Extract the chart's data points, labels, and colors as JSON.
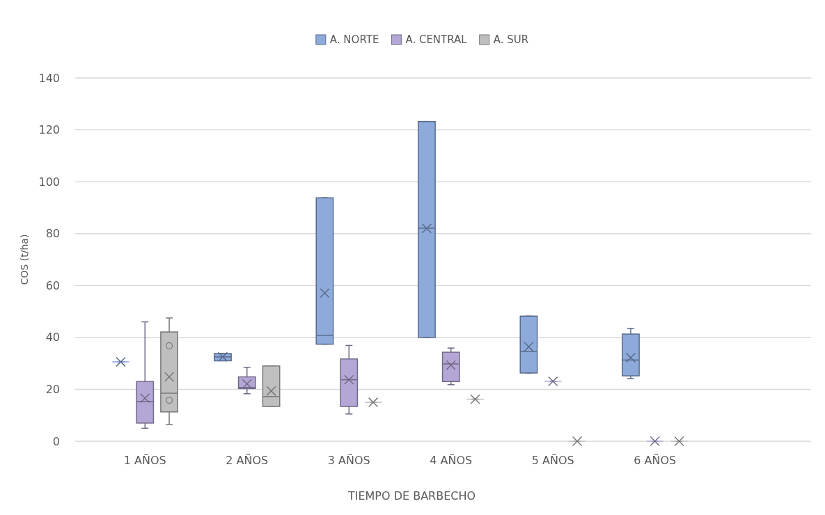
{
  "chart_data": {
    "type": "box",
    "xlabel": "TIEMPO DE BARBECHO",
    "ylabel": "COS (t/ha)",
    "categories": [
      "1 AÑOS",
      "2 AÑOS",
      "3 AÑOS",
      "4 AÑOS",
      "5 AÑOS",
      "6 AÑOS"
    ],
    "ylim": [
      0,
      140
    ],
    "yticks": [
      0,
      20,
      40,
      60,
      80,
      100,
      120,
      140
    ],
    "grid": "y",
    "legend": "top",
    "marker": "cross",
    "series": [
      {
        "name": "A. NORTE",
        "color": "#8eaadb",
        "boxes": [
          {
            "low": 30.6,
            "q1": 30.6,
            "median": 30.6,
            "q3": 30.6,
            "high": 30.6,
            "mean": 30.6
          },
          {
            "low": 31,
            "q1": 31,
            "median": 32.5,
            "q3": 33.8,
            "high": 33.8,
            "mean": 32.5
          },
          {
            "low": 37.4,
            "q1": 37.4,
            "median": 40.8,
            "q3": 93.8,
            "high": 93.8,
            "mean": 57.1
          },
          {
            "low": 40,
            "q1": 40,
            "median": 82.1,
            "q3": 123.2,
            "high": 123.2,
            "mean": 82
          },
          {
            "low": 26.3,
            "q1": 26.3,
            "median": 34.6,
            "q3": 48.2,
            "high": 48.2,
            "mean": 36.4
          },
          {
            "low": 24.1,
            "q1": 25.2,
            "median": 31.3,
            "q3": 41.3,
            "high": 43.5,
            "mean": 32.2
          }
        ]
      },
      {
        "name": "A. CENTRAL",
        "color": "#b4a7d6",
        "boxes": [
          {
            "low": 5,
            "q1": 7,
            "median": 15.3,
            "q3": 23,
            "high": 46,
            "mean": 16.6
          },
          {
            "low": 18.3,
            "q1": 20.3,
            "median": 20.7,
            "q3": 24.8,
            "high": 28.5,
            "mean": 22.1
          },
          {
            "low": 10.5,
            "q1": 13.4,
            "median": 23.7,
            "q3": 31.7,
            "high": 36.9,
            "mean": 23.7
          },
          {
            "low": 21.8,
            "q1": 23,
            "median": 29.8,
            "q3": 34.3,
            "high": 35.9,
            "mean": 29.3
          },
          {
            "low": 23.1,
            "q1": 23.1,
            "median": 23.1,
            "q3": 23.1,
            "high": 23.1,
            "mean": 23.1
          },
          {
            "low": 0,
            "q1": 0,
            "median": 0,
            "q3": 0,
            "high": 0,
            "mean": 0
          }
        ]
      },
      {
        "name": "A. SUR",
        "color": "#bfbfbf",
        "boxes": [
          {
            "low": 6.4,
            "q1": 11.3,
            "median": 18.5,
            "q3": 42.1,
            "high": 47.5,
            "mean": 24.8,
            "outliers": [
              36.8,
              15.8
            ]
          },
          {
            "low": 13.4,
            "q1": 13.4,
            "median": 17.2,
            "q3": 29,
            "high": 29,
            "mean": 19.4
          },
          {
            "low": 15,
            "q1": 15,
            "median": 15,
            "q3": 15,
            "high": 15,
            "mean": 15
          },
          {
            "low": 16.2,
            "q1": 16.2,
            "median": 16.2,
            "q3": 16.2,
            "high": 16.2,
            "mean": 16.2
          },
          {
            "low": 0,
            "q1": 0,
            "median": 0,
            "q3": 0,
            "high": 0,
            "mean": 0
          },
          {
            "low": 0,
            "q1": 0,
            "median": 0,
            "q3": 0,
            "high": 0,
            "mean": 0
          }
        ]
      }
    ]
  }
}
